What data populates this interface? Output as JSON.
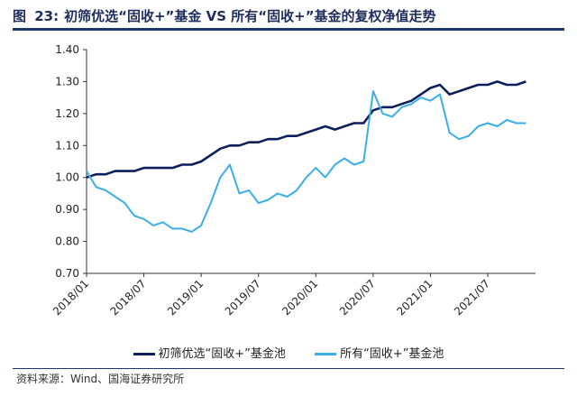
{
  "figure": {
    "label": "图",
    "number": "23:",
    "title": "初筛优选“固收+”基金 VS 所有“固收+”基金的复权净值走势"
  },
  "source": "资料来源：Wind、国海证券研究所",
  "colors": {
    "title": "#1f2d5a",
    "rule": "#1a3a6b"
  },
  "chart_data": {
    "type": "line",
    "x_ticks": [
      "2018/01",
      "2018/07",
      "2019/01",
      "2019/07",
      "2020/01",
      "2020/07",
      "2021/01",
      "2021/07"
    ],
    "ylim": [
      0.7,
      1.4
    ],
    "y_ticks": [
      "0.70",
      "0.80",
      "0.90",
      "1.00",
      "1.10",
      "1.20",
      "1.30",
      "1.40"
    ],
    "grid": false,
    "legend_position": "bottom",
    "series": [
      {
        "name": "初筛优选“固收+”基金池",
        "color": "#0d1f5c",
        "points": [
          [
            "2018/01",
            1.0
          ],
          [
            "2018/02",
            1.01
          ],
          [
            "2018/03",
            1.01
          ],
          [
            "2018/04",
            1.02
          ],
          [
            "2018/05",
            1.02
          ],
          [
            "2018/06",
            1.02
          ],
          [
            "2018/07",
            1.03
          ],
          [
            "2018/08",
            1.03
          ],
          [
            "2018/09",
            1.03
          ],
          [
            "2018/10",
            1.03
          ],
          [
            "2018/11",
            1.04
          ],
          [
            "2018/12",
            1.04
          ],
          [
            "2019/01",
            1.05
          ],
          [
            "2019/02",
            1.07
          ],
          [
            "2019/03",
            1.09
          ],
          [
            "2019/04",
            1.1
          ],
          [
            "2019/05",
            1.1
          ],
          [
            "2019/06",
            1.11
          ],
          [
            "2019/07",
            1.11
          ],
          [
            "2019/08",
            1.12
          ],
          [
            "2019/09",
            1.12
          ],
          [
            "2019/10",
            1.13
          ],
          [
            "2019/11",
            1.13
          ],
          [
            "2019/12",
            1.14
          ],
          [
            "2020/01",
            1.15
          ],
          [
            "2020/02",
            1.16
          ],
          [
            "2020/03",
            1.15
          ],
          [
            "2020/04",
            1.16
          ],
          [
            "2020/05",
            1.17
          ],
          [
            "2020/06",
            1.17
          ],
          [
            "2020/07",
            1.21
          ],
          [
            "2020/08",
            1.22
          ],
          [
            "2020/09",
            1.22
          ],
          [
            "2020/10",
            1.23
          ],
          [
            "2020/11",
            1.24
          ],
          [
            "2020/12",
            1.26
          ],
          [
            "2021/01",
            1.28
          ],
          [
            "2021/02",
            1.29
          ],
          [
            "2021/03",
            1.26
          ],
          [
            "2021/04",
            1.27
          ],
          [
            "2021/05",
            1.28
          ],
          [
            "2021/06",
            1.29
          ],
          [
            "2021/07",
            1.29
          ],
          [
            "2021/08",
            1.3
          ],
          [
            "2021/09",
            1.29
          ],
          [
            "2021/10",
            1.29
          ],
          [
            "2021/11",
            1.3
          ]
        ]
      },
      {
        "name": "所有“固收+”基金池",
        "color": "#3aaee8",
        "points": [
          [
            "2018/01",
            1.02
          ],
          [
            "2018/02",
            0.97
          ],
          [
            "2018/03",
            0.96
          ],
          [
            "2018/04",
            0.94
          ],
          [
            "2018/05",
            0.92
          ],
          [
            "2018/06",
            0.88
          ],
          [
            "2018/07",
            0.87
          ],
          [
            "2018/08",
            0.85
          ],
          [
            "2018/09",
            0.86
          ],
          [
            "2018/10",
            0.84
          ],
          [
            "2018/11",
            0.84
          ],
          [
            "2018/12",
            0.83
          ],
          [
            "2019/01",
            0.85
          ],
          [
            "2019/02",
            0.92
          ],
          [
            "2019/03",
            1.0
          ],
          [
            "2019/04",
            1.04
          ],
          [
            "2019/05",
            0.95
          ],
          [
            "2019/06",
            0.96
          ],
          [
            "2019/07",
            0.92
          ],
          [
            "2019/08",
            0.93
          ],
          [
            "2019/09",
            0.95
          ],
          [
            "2019/10",
            0.94
          ],
          [
            "2019/11",
            0.96
          ],
          [
            "2019/12",
            1.0
          ],
          [
            "2020/01",
            1.03
          ],
          [
            "2020/02",
            1.0
          ],
          [
            "2020/03",
            1.04
          ],
          [
            "2020/04",
            1.06
          ],
          [
            "2020/05",
            1.04
          ],
          [
            "2020/06",
            1.05
          ],
          [
            "2020/07",
            1.27
          ],
          [
            "2020/08",
            1.2
          ],
          [
            "2020/09",
            1.19
          ],
          [
            "2020/10",
            1.22
          ],
          [
            "2020/11",
            1.23
          ],
          [
            "2020/12",
            1.25
          ],
          [
            "2021/01",
            1.24
          ],
          [
            "2021/02",
            1.26
          ],
          [
            "2021/03",
            1.14
          ],
          [
            "2021/04",
            1.12
          ],
          [
            "2021/05",
            1.13
          ],
          [
            "2021/06",
            1.16
          ],
          [
            "2021/07",
            1.17
          ],
          [
            "2021/08",
            1.16
          ],
          [
            "2021/09",
            1.18
          ],
          [
            "2021/10",
            1.17
          ],
          [
            "2021/11",
            1.17
          ]
        ]
      }
    ]
  }
}
